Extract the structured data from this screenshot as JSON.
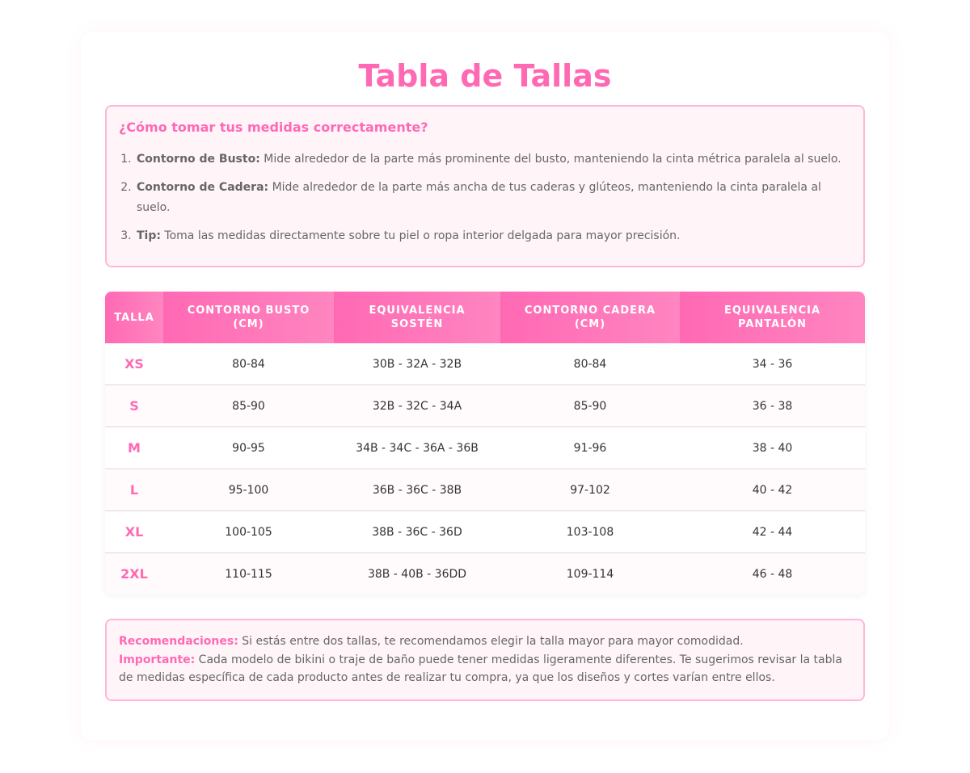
{
  "title": "Tabla de Tallas",
  "colors": {
    "accent": "#ff69b4",
    "border": "#ffb6d9",
    "panel_bg": "#fff5f9"
  },
  "info": {
    "heading": "¿Cómo tomar tus medidas correctamente?",
    "items": [
      {
        "label": "Contorno de Busto:",
        "text": " Mide alrededor de la parte más prominente del busto, manteniendo la cinta métrica paralela al suelo."
      },
      {
        "label": "Contorno de Cadera:",
        "text": " Mide alrededor de la parte más ancha de tus caderas y glúteos, manteniendo la cinta paralela al suelo."
      },
      {
        "label": "Tip:",
        "text": " Toma las medidas directamente sobre tu piel o ropa interior delgada para mayor precisión."
      }
    ]
  },
  "table": {
    "headers": [
      "Talla",
      "Contorno Busto (cm)",
      "Equivalencia Sostén",
      "Contorno Cadera (cm)",
      "Equivalencia Pantalón"
    ],
    "rows": [
      [
        "XS",
        "80-84",
        "30B - 32A - 32B",
        "80-84",
        "34 - 36"
      ],
      [
        "S",
        "85-90",
        "32B - 32C - 34A",
        "85-90",
        "36 - 38"
      ],
      [
        "M",
        "90-95",
        "34B - 34C - 36A - 36B",
        "91-96",
        "38 - 40"
      ],
      [
        "L",
        "95-100",
        "36B - 36C - 38B",
        "97-102",
        "40 - 42"
      ],
      [
        "XL",
        "100-105",
        "38B - 36C - 36D",
        "103-108",
        "42 - 44"
      ],
      [
        "2XL",
        "110-115",
        "38B - 40B - 36DD",
        "109-114",
        "46 - 48"
      ]
    ]
  },
  "note": {
    "rec_label": "Recomendaciones:",
    "rec_text": " Si estás entre dos tallas, te recomendamos elegir la talla mayor para mayor comodidad.",
    "imp_label": "Importante:",
    "imp_text": " Cada modelo de bikini o traje de baño puede tener medidas ligeramente diferentes. Te sugerimos revisar la tabla de medidas específica de cada producto antes de realizar tu compra, ya que los diseños y cortes varían entre ellos."
  }
}
